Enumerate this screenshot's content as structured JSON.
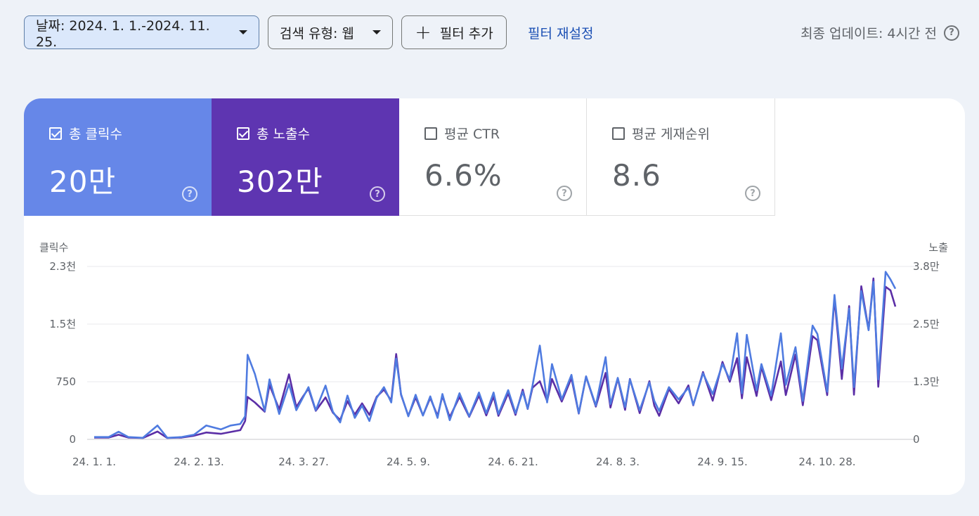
{
  "toolbar": {
    "date_filter": "날짜: 2024. 1. 1.-2024. 11. 25.",
    "search_type_filter": "검색 유형: 웹",
    "add_filter": "필터 추가",
    "reset_filter": "필터 재설정",
    "last_updated": "최종 업데이트: 4시간 전"
  },
  "metrics": [
    {
      "label": "총 클릭수",
      "value": "20만",
      "checked": true,
      "color": "#6687e8"
    },
    {
      "label": "총 노출수",
      "value": "302만",
      "checked": true,
      "color": "#5e35b1"
    },
    {
      "label": "평균 CTR",
      "value": "6.6%",
      "checked": false
    },
    {
      "label": "평균 게재순위",
      "value": "8.6",
      "checked": false
    }
  ],
  "chart_data": {
    "type": "line",
    "left_axis_title": "클릭수",
    "right_axis_title": "노출",
    "left_ticks": [
      "2.3천",
      "1.5천",
      "750",
      "0"
    ],
    "right_ticks": [
      "3.8만",
      "2.5만",
      "1.3만",
      "0"
    ],
    "left_tick_values": [
      2250,
      1500,
      750,
      0
    ],
    "right_tick_values": [
      37500,
      25000,
      12500,
      0
    ],
    "ylim_left": [
      0,
      2250
    ],
    "ylim_right": [
      0,
      37500
    ],
    "x_labels": [
      "24. 1. 1.",
      "24. 2. 13.",
      "24. 3. 27.",
      "24. 5. 9.",
      "24. 6. 21.",
      "24. 8. 3.",
      "24. 9. 15.",
      "24. 10. 28."
    ],
    "x_label_days": [
      0,
      43,
      86,
      129,
      172,
      215,
      258,
      301
    ],
    "x_range_days": [
      0,
      329
    ],
    "series": [
      {
        "name": "클릭수",
        "color": "#4f7be0",
        "axis": "left",
        "points": [
          [
            0,
            30
          ],
          [
            6,
            30
          ],
          [
            10,
            100
          ],
          [
            14,
            30
          ],
          [
            20,
            20
          ],
          [
            26,
            180
          ],
          [
            30,
            20
          ],
          [
            36,
            30
          ],
          [
            41,
            60
          ],
          [
            46,
            180
          ],
          [
            52,
            130
          ],
          [
            56,
            180
          ],
          [
            60,
            200
          ],
          [
            62,
            300
          ],
          [
            63,
            1100
          ],
          [
            66,
            850
          ],
          [
            70,
            370
          ],
          [
            72,
            780
          ],
          [
            76,
            330
          ],
          [
            80,
            720
          ],
          [
            83,
            380
          ],
          [
            86,
            560
          ],
          [
            88,
            680
          ],
          [
            91,
            380
          ],
          [
            95,
            700
          ],
          [
            98,
            360
          ],
          [
            101,
            220
          ],
          [
            104,
            570
          ],
          [
            107,
            280
          ],
          [
            110,
            440
          ],
          [
            113,
            240
          ],
          [
            116,
            540
          ],
          [
            119,
            680
          ],
          [
            122,
            480
          ],
          [
            124,
            1050
          ],
          [
            126,
            590
          ],
          [
            129,
            300
          ],
          [
            132,
            580
          ],
          [
            135,
            310
          ],
          [
            138,
            560
          ],
          [
            141,
            280
          ],
          [
            143,
            590
          ],
          [
            146,
            250
          ],
          [
            150,
            600
          ],
          [
            154,
            300
          ],
          [
            158,
            610
          ],
          [
            161,
            340
          ],
          [
            164,
            610
          ],
          [
            166,
            330
          ],
          [
            170,
            640
          ],
          [
            173,
            340
          ],
          [
            176,
            620
          ],
          [
            178,
            400
          ],
          [
            180,
            700
          ],
          [
            183,
            1220
          ],
          [
            186,
            480
          ],
          [
            188,
            980
          ],
          [
            192,
            520
          ],
          [
            196,
            840
          ],
          [
            199,
            340
          ],
          [
            202,
            820
          ],
          [
            206,
            440
          ],
          [
            210,
            1070
          ],
          [
            212,
            460
          ],
          [
            215,
            800
          ],
          [
            218,
            420
          ],
          [
            220,
            780
          ],
          [
            224,
            380
          ],
          [
            228,
            740
          ],
          [
            230,
            500
          ],
          [
            232,
            370
          ],
          [
            236,
            680
          ],
          [
            240,
            520
          ],
          [
            244,
            670
          ],
          [
            246,
            450
          ],
          [
            250,
            860
          ],
          [
            254,
            590
          ],
          [
            258,
            980
          ],
          [
            261,
            780
          ],
          [
            264,
            1380
          ],
          [
            266,
            600
          ],
          [
            268,
            1360
          ],
          [
            272,
            640
          ],
          [
            274,
            980
          ],
          [
            278,
            570
          ],
          [
            282,
            1380
          ],
          [
            284,
            710
          ],
          [
            288,
            1200
          ],
          [
            291,
            500
          ],
          [
            295,
            1480
          ],
          [
            297,
            1370
          ],
          [
            301,
            620
          ],
          [
            304,
            1880
          ],
          [
            307,
            920
          ],
          [
            310,
            1700
          ],
          [
            312,
            680
          ],
          [
            315,
            1930
          ],
          [
            318,
            1420
          ],
          [
            320,
            2050
          ],
          [
            322,
            780
          ],
          [
            325,
            2180
          ],
          [
            327,
            2080
          ],
          [
            329,
            1960
          ]
        ]
      },
      {
        "name": "노출",
        "color": "#5b2ea6",
        "axis": "right",
        "points": [
          [
            0,
            400
          ],
          [
            6,
            400
          ],
          [
            10,
            1000
          ],
          [
            14,
            400
          ],
          [
            20,
            300
          ],
          [
            26,
            1700
          ],
          [
            30,
            300
          ],
          [
            36,
            400
          ],
          [
            41,
            800
          ],
          [
            46,
            1500
          ],
          [
            52,
            1200
          ],
          [
            56,
            1600
          ],
          [
            60,
            2000
          ],
          [
            62,
            4000
          ],
          [
            63,
            9200
          ],
          [
            66,
            8000
          ],
          [
            70,
            6000
          ],
          [
            72,
            11800
          ],
          [
            76,
            6500
          ],
          [
            80,
            14100
          ],
          [
            83,
            7000
          ],
          [
            86,
            9500
          ],
          [
            88,
            11000
          ],
          [
            91,
            6200
          ],
          [
            95,
            9100
          ],
          [
            98,
            5800
          ],
          [
            101,
            4200
          ],
          [
            104,
            8300
          ],
          [
            107,
            5400
          ],
          [
            110,
            7800
          ],
          [
            113,
            5300
          ],
          [
            116,
            9200
          ],
          [
            119,
            10800
          ],
          [
            122,
            8400
          ],
          [
            124,
            18500
          ],
          [
            126,
            9700
          ],
          [
            129,
            5100
          ],
          [
            132,
            9100
          ],
          [
            135,
            5200
          ],
          [
            138,
            9000
          ],
          [
            141,
            5100
          ],
          [
            143,
            9400
          ],
          [
            146,
            4800
          ],
          [
            150,
            9200
          ],
          [
            154,
            4900
          ],
          [
            158,
            9500
          ],
          [
            161,
            5200
          ],
          [
            164,
            9300
          ],
          [
            166,
            5100
          ],
          [
            170,
            10000
          ],
          [
            173,
            5300
          ],
          [
            176,
            10800
          ],
          [
            178,
            6600
          ],
          [
            180,
            11200
          ],
          [
            183,
            12600
          ],
          [
            186,
            8300
          ],
          [
            188,
            13100
          ],
          [
            192,
            8200
          ],
          [
            196,
            13300
          ],
          [
            199,
            5600
          ],
          [
            202,
            13600
          ],
          [
            206,
            7100
          ],
          [
            210,
            14400
          ],
          [
            212,
            6900
          ],
          [
            215,
            13200
          ],
          [
            218,
            6400
          ],
          [
            220,
            13100
          ],
          [
            224,
            5700
          ],
          [
            228,
            12600
          ],
          [
            230,
            7300
          ],
          [
            232,
            5100
          ],
          [
            236,
            10900
          ],
          [
            240,
            7800
          ],
          [
            244,
            11700
          ],
          [
            246,
            7400
          ],
          [
            250,
            14600
          ],
          [
            254,
            8400
          ],
          [
            258,
            16800
          ],
          [
            261,
            12500
          ],
          [
            264,
            17600
          ],
          [
            266,
            8900
          ],
          [
            268,
            17800
          ],
          [
            272,
            9400
          ],
          [
            274,
            15700
          ],
          [
            278,
            8500
          ],
          [
            282,
            16900
          ],
          [
            284,
            9600
          ],
          [
            288,
            18400
          ],
          [
            291,
            7400
          ],
          [
            295,
            22400
          ],
          [
            297,
            21500
          ],
          [
            301,
            9600
          ],
          [
            304,
            30600
          ],
          [
            307,
            13100
          ],
          [
            310,
            28900
          ],
          [
            312,
            9700
          ],
          [
            315,
            33200
          ],
          [
            318,
            23800
          ],
          [
            320,
            34900
          ],
          [
            322,
            11400
          ],
          [
            325,
            33100
          ],
          [
            327,
            32300
          ],
          [
            329,
            28800
          ]
        ]
      }
    ]
  }
}
